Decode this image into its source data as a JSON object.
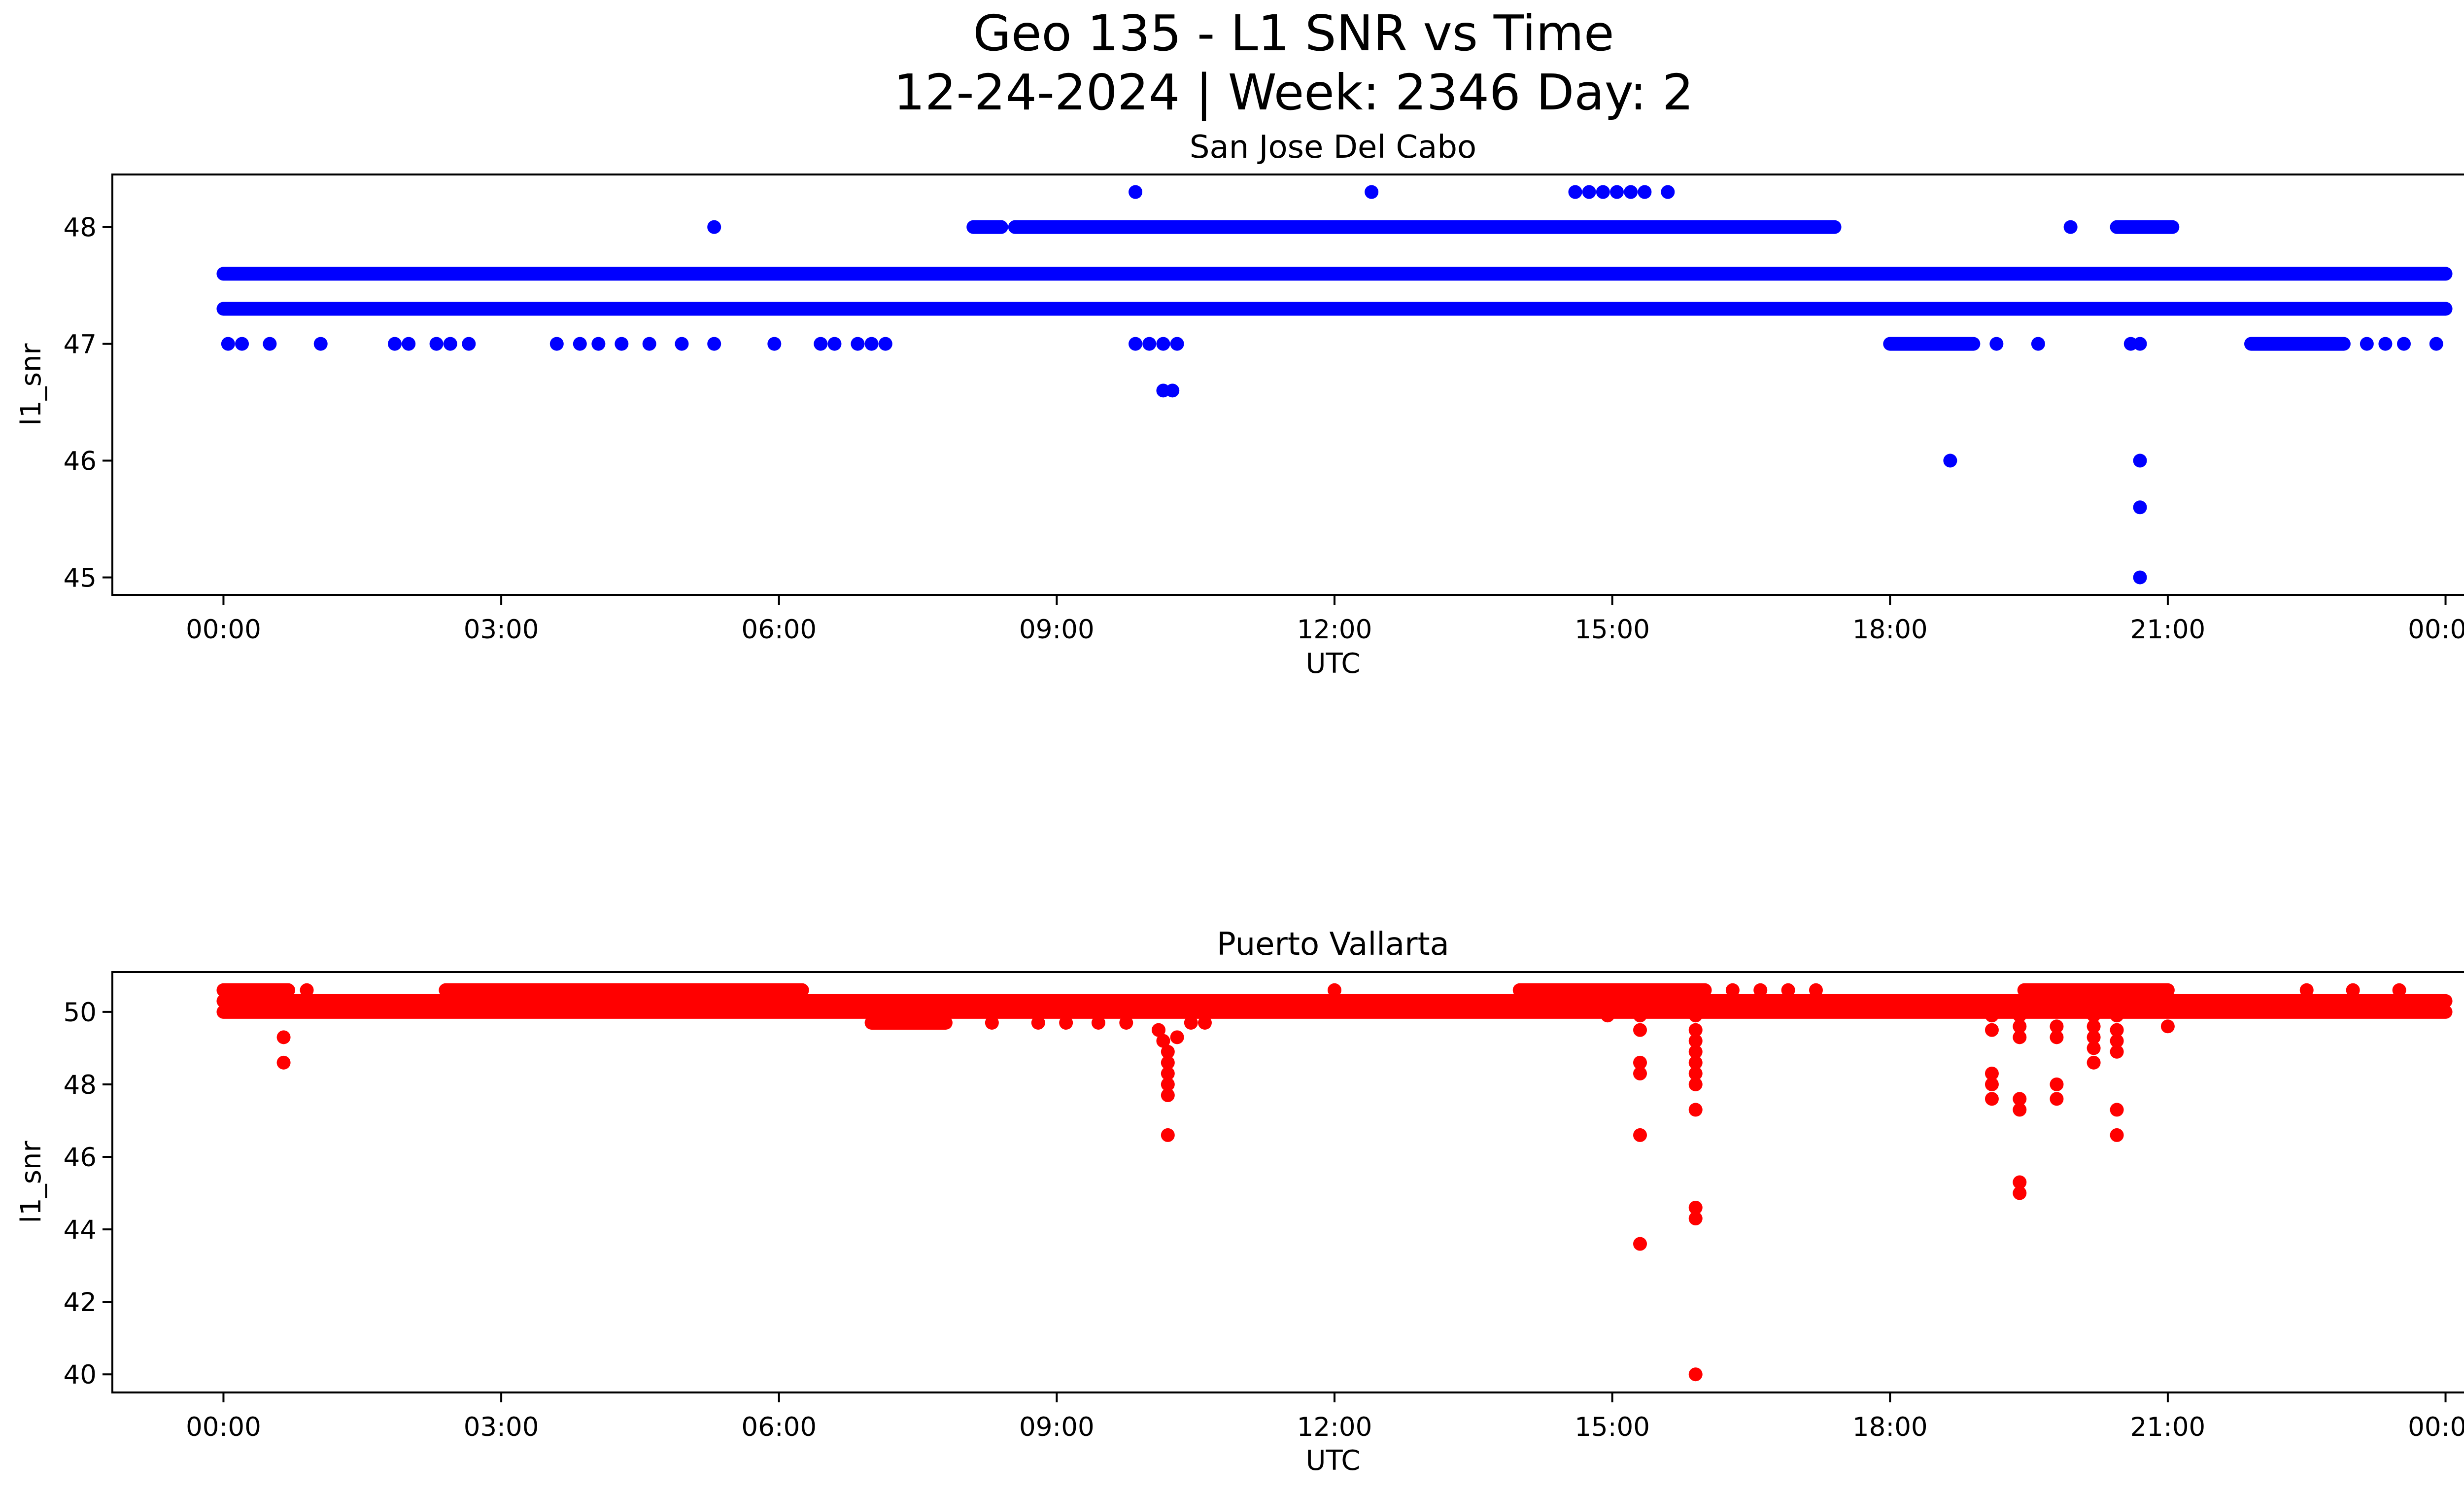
{
  "figure": {
    "title_line1": "Geo 135 - L1 SNR vs Time",
    "title_line2": "12-24-2024 | Week: 2346 Day: 2"
  },
  "chart_data": [
    {
      "type": "scatter",
      "title": "San Jose Del Cabo",
      "xlabel": "UTC",
      "ylabel": "l1_snr",
      "color": "#0000ff",
      "xlim_hours": [
        -1.2,
        25.2
      ],
      "ylim": [
        44.85,
        48.45
      ],
      "xticks": [
        0,
        3,
        6,
        9,
        12,
        15,
        18,
        21,
        24
      ],
      "xtick_labels": [
        "00:00",
        "03:00",
        "06:00",
        "09:00",
        "12:00",
        "15:00",
        "18:00",
        "21:00",
        "00:00"
      ],
      "yticks": [
        45,
        46,
        47,
        48
      ],
      "ytick_labels": [
        "45",
        "46",
        "47",
        "48"
      ],
      "series": [
        {
          "name": "band 47.6",
          "segments": [
            {
              "from": 0,
              "to": 24,
              "y": 47.6
            }
          ]
        },
        {
          "name": "band 47.3",
          "segments": [
            {
              "from": 0,
              "to": 24,
              "y": 47.3
            }
          ]
        },
        {
          "name": "band 48.0",
          "segments": [
            {
              "from": 8.1,
              "to": 8.4,
              "y": 48.0
            },
            {
              "from": 8.55,
              "to": 17.4,
              "y": 48.0
            },
            {
              "from": 20.45,
              "to": 21.05,
              "y": 48.0
            }
          ]
        },
        {
          "name": "band 47.0",
          "segments": [
            {
              "from": 18.0,
              "to": 18.9,
              "y": 47.0
            },
            {
              "from": 21.9,
              "to": 22.9,
              "y": 47.0
            }
          ]
        },
        {
          "name": "points",
          "points": [
            [
              0.05,
              47.0
            ],
            [
              0.2,
              47.0
            ],
            [
              0.5,
              47.0
            ],
            [
              1.05,
              47.0
            ],
            [
              1.85,
              47.0
            ],
            [
              2.0,
              47.0
            ],
            [
              2.3,
              47.0
            ],
            [
              2.45,
              47.0
            ],
            [
              2.65,
              47.0
            ],
            [
              3.6,
              47.0
            ],
            [
              3.85,
              47.0
            ],
            [
              4.05,
              47.0
            ],
            [
              4.3,
              47.0
            ],
            [
              4.6,
              47.0
            ],
            [
              4.95,
              47.0
            ],
            [
              5.3,
              47.0
            ],
            [
              5.95,
              47.0
            ],
            [
              6.45,
              47.0
            ],
            [
              6.6,
              47.0
            ],
            [
              6.85,
              47.0
            ],
            [
              7.0,
              47.0
            ],
            [
              7.15,
              47.0
            ],
            [
              5.3,
              48.0
            ],
            [
              9.85,
              48.3
            ],
            [
              12.4,
              48.3
            ],
            [
              14.6,
              48.3
            ],
            [
              14.75,
              48.3
            ],
            [
              14.9,
              48.3
            ],
            [
              15.05,
              48.3
            ],
            [
              15.2,
              48.3
            ],
            [
              15.35,
              48.3
            ],
            [
              15.6,
              48.3
            ],
            [
              9.85,
              47.0
            ],
            [
              10.0,
              47.0
            ],
            [
              10.15,
              47.0
            ],
            [
              10.3,
              47.0
            ],
            [
              10.15,
              46.6
            ],
            [
              10.25,
              46.6
            ],
            [
              8.5,
              47.3
            ],
            [
              8.75,
              47.3
            ],
            [
              9.0,
              47.3
            ],
            [
              9.35,
              47.3
            ],
            [
              9.6,
              47.3
            ],
            [
              10.4,
              47.3
            ],
            [
              10.55,
              47.3
            ],
            [
              10.7,
              47.3
            ],
            [
              12.9,
              47.3
            ],
            [
              13.2,
              47.3
            ],
            [
              15.8,
              47.3
            ],
            [
              16.35,
              47.3
            ],
            [
              16.8,
              47.3
            ],
            [
              17.0,
              47.3
            ],
            [
              19.15,
              47.0
            ],
            [
              19.6,
              47.0
            ],
            [
              20.6,
              47.0
            ],
            [
              20.7,
              47.0
            ],
            [
              23.15,
              47.0
            ],
            [
              23.35,
              47.0
            ],
            [
              23.55,
              47.0
            ],
            [
              23.9,
              47.0
            ],
            [
              19.95,
              48.0
            ],
            [
              18.65,
              46.0
            ],
            [
              20.7,
              46.0
            ],
            [
              20.7,
              45.6
            ],
            [
              20.7,
              45.0
            ]
          ]
        }
      ]
    },
    {
      "type": "scatter",
      "title": "Puerto Vallarta",
      "xlabel": "UTC",
      "ylabel": "l1_snr",
      "color": "#ff0000",
      "xlim_hours": [
        -1.2,
        25.2
      ],
      "ylim": [
        39.5,
        51.1
      ],
      "xticks": [
        0,
        3,
        6,
        9,
        12,
        15,
        18,
        21,
        24
      ],
      "xtick_labels": [
        "00:00",
        "03:00",
        "06:00",
        "09:00",
        "12:00",
        "15:00",
        "18:00",
        "21:00",
        "00:00"
      ],
      "yticks": [
        40,
        42,
        44,
        46,
        48,
        50
      ],
      "ytick_labels": [
        "40",
        "42",
        "44",
        "46",
        "48",
        "50"
      ],
      "series": [
        {
          "name": "band 50.3",
          "segments": [
            {
              "from": 0,
              "to": 24,
              "y": 50.3
            }
          ]
        },
        {
          "name": "band 50.0",
          "segments": [
            {
              "from": 0,
              "to": 24,
              "y": 50.0
            }
          ]
        },
        {
          "name": "band 50.6",
          "segments": [
            {
              "from": 0,
              "to": 0.7,
              "y": 50.6
            },
            {
              "from": 2.4,
              "to": 6.25,
              "y": 50.6
            },
            {
              "from": 14.0,
              "to": 16.0,
              "y": 50.6
            },
            {
              "from": 19.45,
              "to": 21.0,
              "y": 50.6
            }
          ]
        },
        {
          "name": "band 49.7",
          "segments": [
            {
              "from": 7.0,
              "to": 7.8,
              "y": 49.7
            }
          ]
        },
        {
          "name": "points",
          "points": [
            [
              0.65,
              49.3
            ],
            [
              0.65,
              48.6
            ],
            [
              0.9,
              50.6
            ],
            [
              8.3,
              49.7
            ],
            [
              8.8,
              49.7
            ],
            [
              9.1,
              49.7
            ],
            [
              9.45,
              49.7
            ],
            [
              9.75,
              49.7
            ],
            [
              10.45,
              49.7
            ],
            [
              10.6,
              49.7
            ],
            [
              10.1,
              49.5
            ],
            [
              10.15,
              49.2
            ],
            [
              10.2,
              48.9
            ],
            [
              10.2,
              48.6
            ],
            [
              10.2,
              48.3
            ],
            [
              10.2,
              48.0
            ],
            [
              10.2,
              47.7
            ],
            [
              10.2,
              46.6
            ],
            [
              10.3,
              49.3
            ],
            [
              12.0,
              50.6
            ],
            [
              14.95,
              49.9
            ],
            [
              15.3,
              49.9
            ],
            [
              15.3,
              49.5
            ],
            [
              15.3,
              48.6
            ],
            [
              15.3,
              48.3
            ],
            [
              15.3,
              46.6
            ],
            [
              15.3,
              43.6
            ],
            [
              15.9,
              49.9
            ],
            [
              15.9,
              49.5
            ],
            [
              15.9,
              49.2
            ],
            [
              15.9,
              48.9
            ],
            [
              15.9,
              48.6
            ],
            [
              15.9,
              48.3
            ],
            [
              15.9,
              48.0
            ],
            [
              15.9,
              47.3
            ],
            [
              15.9,
              44.6
            ],
            [
              15.9,
              44.3
            ],
            [
              15.9,
              40.0
            ],
            [
              16.3,
              50.6
            ],
            [
              16.6,
              50.6
            ],
            [
              16.9,
              50.6
            ],
            [
              17.2,
              50.6
            ],
            [
              19.1,
              49.9
            ],
            [
              19.1,
              49.5
            ],
            [
              19.1,
              48.3
            ],
            [
              19.1,
              48.0
            ],
            [
              19.1,
              47.6
            ],
            [
              19.4,
              49.9
            ],
            [
              19.4,
              49.6
            ],
            [
              19.4,
              49.3
            ],
            [
              19.4,
              47.6
            ],
            [
              19.4,
              47.3
            ],
            [
              19.4,
              45.3
            ],
            [
              19.4,
              45.0
            ],
            [
              19.8,
              49.6
            ],
            [
              19.8,
              49.3
            ],
            [
              19.8,
              48.0
            ],
            [
              19.8,
              47.6
            ],
            [
              20.2,
              49.9
            ],
            [
              20.2,
              49.6
            ],
            [
              20.2,
              49.3
            ],
            [
              20.2,
              49.0
            ],
            [
              20.2,
              48.6
            ],
            [
              20.45,
              49.9
            ],
            [
              20.45,
              49.5
            ],
            [
              20.45,
              49.2
            ],
            [
              20.45,
              48.9
            ],
            [
              20.45,
              47.3
            ],
            [
              20.45,
              46.6
            ],
            [
              21.0,
              49.6
            ],
            [
              22.5,
              50.6
            ],
            [
              23.0,
              50.6
            ],
            [
              23.5,
              50.6
            ]
          ]
        }
      ]
    }
  ]
}
